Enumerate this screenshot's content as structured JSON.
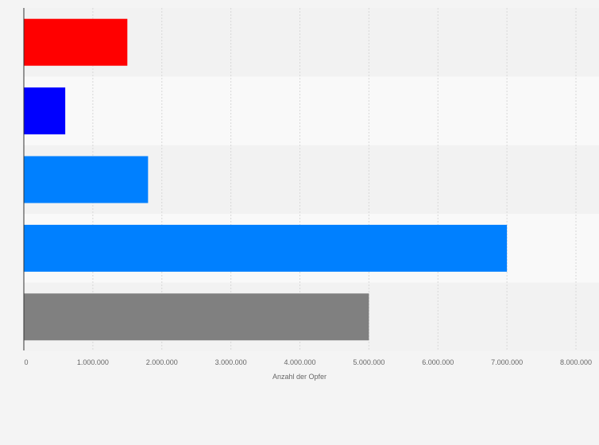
{
  "chart_data": {
    "type": "bar",
    "orientation": "horizontal",
    "title": "",
    "xlabel": "Anzahl der Opfer",
    "ylabel": "",
    "xlim": [
      0,
      8000000
    ],
    "grid": true,
    "legend": "none",
    "x_ticks": [
      0,
      1000000,
      2000000,
      3000000,
      4000000,
      5000000,
      6000000,
      7000000,
      8000000
    ],
    "x_tick_labels": [
      "0",
      "1.000.000",
      "2.000.000",
      "3.000.000",
      "4.000.000",
      "5.000.000",
      "6.000.000",
      "7.000.000",
      "8.000.000"
    ],
    "values": [
      1500000,
      600000,
      1800000,
      7000000,
      5000000
    ],
    "colors": [
      "#ff0000",
      "#0000ff",
      "#0080ff",
      "#0080ff",
      "#808080"
    ]
  }
}
